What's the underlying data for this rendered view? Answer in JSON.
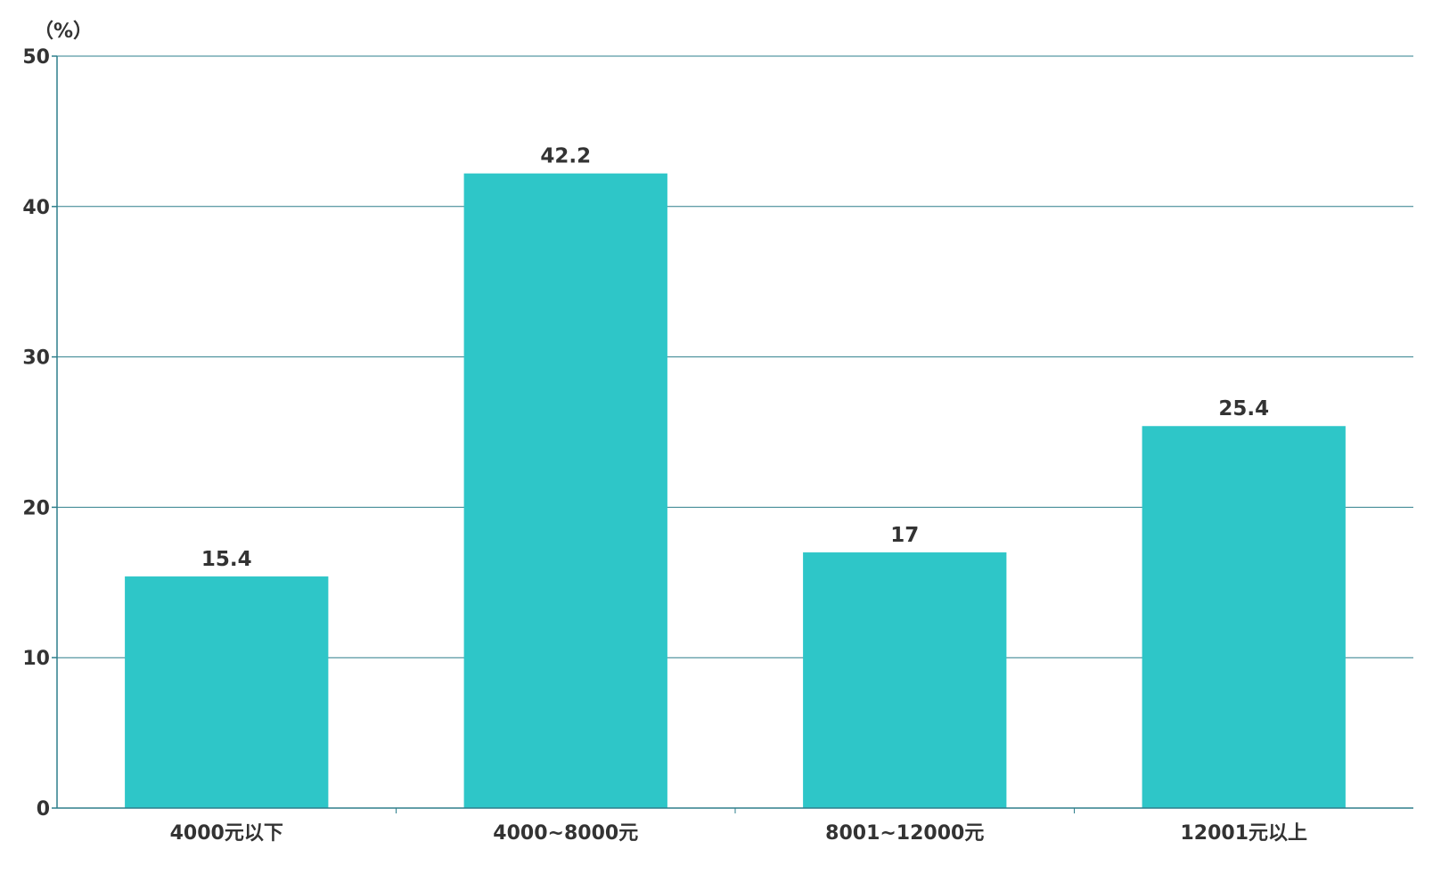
{
  "chart_data": {
    "type": "bar",
    "unit_label": "（%）",
    "categories": [
      "4000元以下",
      "4000~8000元",
      "8001~12000元",
      "12001元以上"
    ],
    "values": [
      15.4,
      42.2,
      17,
      25.4
    ],
    "value_labels": [
      "15.4",
      "42.2",
      "17",
      "25.4"
    ],
    "ylim": [
      0,
      50
    ],
    "yticks": [
      0,
      10,
      20,
      30,
      40,
      50
    ],
    "grid": true,
    "legend": "none",
    "colors": {
      "bar": "#2ec6c8",
      "gridline": "#2e7f8c",
      "axis": "#2e7f8c",
      "text": "#333333"
    }
  }
}
